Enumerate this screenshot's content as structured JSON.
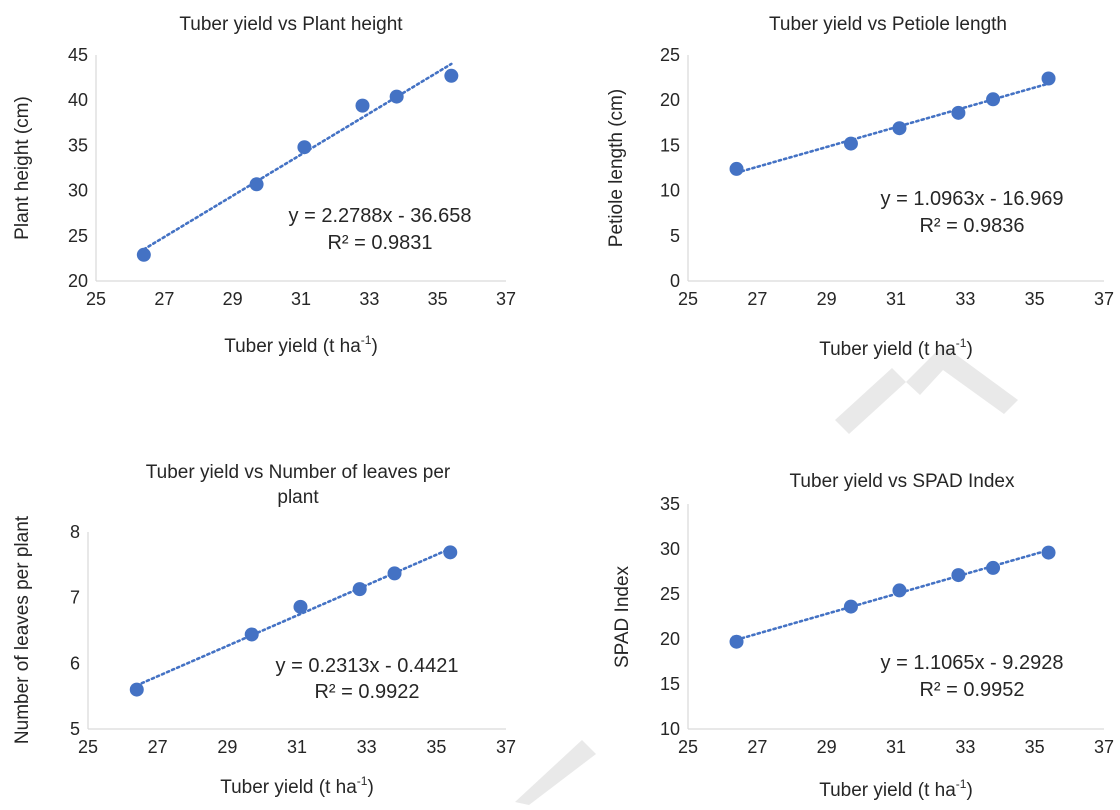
{
  "chart_data": [
    {
      "type": "scatter",
      "title": "Tuber yield vs Plant height",
      "xlabel": "Tuber yield (t ha",
      "xlabel_sup": "-1",
      "xlabel_close": ")",
      "ylabel": "Plant height (cm)",
      "xlim": [
        25,
        37
      ],
      "ylim": [
        20,
        45
      ],
      "x_ticks": [
        "25",
        "27",
        "29",
        "31",
        "33",
        "35",
        "37"
      ],
      "y_ticks": [
        "20",
        "25",
        "30",
        "35",
        "40",
        "45"
      ],
      "x": [
        26.4,
        29.7,
        31.1,
        32.8,
        33.8,
        35.4
      ],
      "y": [
        22.9,
        30.7,
        34.8,
        39.4,
        40.4,
        42.7
      ],
      "trendline": {
        "slope": 2.2788,
        "intercept": -36.658
      },
      "equation": "y = 2.2788x - 36.658",
      "r2": "R² = 0.9831",
      "color": "#4472c4"
    },
    {
      "type": "scatter",
      "title": "Tuber yield vs Petiole length",
      "xlabel": "Tuber yield (t ha",
      "xlabel_sup": "-1",
      "xlabel_close": ")",
      "ylabel": "Petiole length (cm)",
      "xlim": [
        25,
        37
      ],
      "ylim": [
        0,
        25
      ],
      "x_ticks": [
        "25",
        "27",
        "29",
        "31",
        "33",
        "35",
        "37"
      ],
      "y_ticks": [
        "0",
        "5",
        "10",
        "15",
        "20",
        "25"
      ],
      "x": [
        26.4,
        29.7,
        31.1,
        32.8,
        33.8,
        35.4
      ],
      "y": [
        12.4,
        15.2,
        16.9,
        18.6,
        20.1,
        22.4
      ],
      "trendline": {
        "slope": 1.0963,
        "intercept": -16.969
      },
      "equation": "y = 1.0963x - 16.969",
      "r2": "R² = 0.9836",
      "color": "#4472c4"
    },
    {
      "type": "scatter",
      "title": "Tuber yield vs Number of leaves per",
      "title_line2": "plant",
      "xlabel": "Tuber yield (t ha",
      "xlabel_sup": "-1",
      "xlabel_close": ")",
      "ylabel": "Number of leaves per plant",
      "xlim": [
        25,
        37
      ],
      "ylim": [
        5,
        8
      ],
      "x_ticks": [
        "25",
        "27",
        "29",
        "31",
        "33",
        "35",
        "37"
      ],
      "y_ticks": [
        "5",
        "6",
        "7",
        "8"
      ],
      "x": [
        26.4,
        29.7,
        31.1,
        32.8,
        33.8,
        35.4
      ],
      "y": [
        5.6,
        6.44,
        6.86,
        7.13,
        7.37,
        7.69
      ],
      "trendline": {
        "slope": 0.2313,
        "intercept": -0.4421
      },
      "equation": "y = 0.2313x - 0.4421",
      "r2": "R² = 0.9922",
      "color": "#4472c4"
    },
    {
      "type": "scatter",
      "title": "Tuber yield vs SPAD Index",
      "xlabel": "Tuber yield (t ha",
      "xlabel_sup": "-1",
      "xlabel_close": ")",
      "ylabel": "SPAD Index",
      "xlim": [
        25,
        37
      ],
      "ylim": [
        10,
        35
      ],
      "x_ticks": [
        "25",
        "27",
        "29",
        "31",
        "33",
        "35",
        "37"
      ],
      "y_ticks": [
        "10",
        "15",
        "20",
        "25",
        "30",
        "35"
      ],
      "x": [
        26.4,
        29.7,
        31.1,
        32.8,
        33.8,
        35.4
      ],
      "y": [
        19.7,
        23.6,
        25.4,
        27.1,
        27.9,
        29.6
      ],
      "trendline": {
        "slope": 1.1065,
        "intercept": -9.2928
      },
      "equation": "y = 1.1065x - 9.2928",
      "r2": "R² = 0.9952",
      "color": "#4472c4"
    }
  ]
}
